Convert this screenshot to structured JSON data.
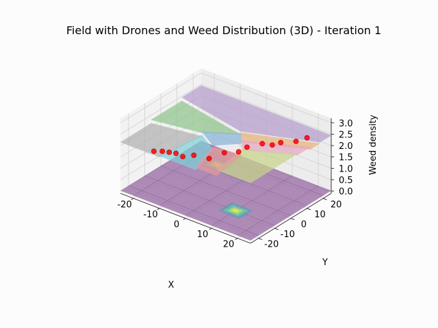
{
  "chart_data": {
    "type": "surface3d",
    "title": "Field with Drones and Weed Distribution (3D) - Iteration 1",
    "xlabel": "X",
    "ylabel": "Y",
    "zlabel": "Weed density",
    "xlim": [
      -25,
      25
    ],
    "ylim": [
      -25,
      25
    ],
    "zlim": [
      -0.1,
      3.2
    ],
    "x_ticks": [
      -20,
      -10,
      0,
      10,
      20
    ],
    "y_ticks": [
      -20,
      -10,
      0,
      10,
      20
    ],
    "z_ticks": [
      "0.0",
      "0.5",
      "1.0",
      "1.5",
      "2.0",
      "2.5",
      "3.0"
    ],
    "grid": true,
    "weed_density_surface": {
      "colormap": "viridis",
      "color": "#9b6fa6",
      "hotspots": [
        {
          "x": 10,
          "y": -10,
          "density": 1
        },
        {
          "x": -12,
          "y": 14,
          "density": 1
        }
      ]
    },
    "drone_partition_layer": {
      "z": 2.3,
      "region_colors": [
        "#b59ccc",
        "#8fc48a",
        "#b0b0b0",
        "#e8b27c",
        "#89b6d8",
        "#e8a6c4",
        "#7fd0d8",
        "#c8d48a",
        "#e69a9a"
      ]
    },
    "drones": {
      "marker_color": "#ff0000",
      "points": [
        {
          "x": -14,
          "y": -22,
          "z": 2.1
        },
        {
          "x": -12,
          "y": -20,
          "z": 2.1
        },
        {
          "x": -10,
          "y": -19,
          "z": 2.1
        },
        {
          "x": -8,
          "y": -18,
          "z": 2.1
        },
        {
          "x": -6,
          "y": -17,
          "z": 2.0
        },
        {
          "x": -3,
          "y": -15,
          "z": 2.1
        },
        {
          "x": 1,
          "y": -12,
          "z": 2.0
        },
        {
          "x": 5,
          "y": -9,
          "z": 2.3
        },
        {
          "x": 8,
          "y": -5,
          "z": 2.3
        },
        {
          "x": 10,
          "y": -3,
          "z": 2.5
        },
        {
          "x": 14,
          "y": 0,
          "z": 2.7
        },
        {
          "x": 16,
          "y": 3,
          "z": 2.6
        },
        {
          "x": 18,
          "y": 5,
          "z": 2.7
        },
        {
          "x": 22,
          "y": 8,
          "z": 2.8
        },
        {
          "x": 25,
          "y": 10,
          "z": 3.0
        }
      ]
    }
  }
}
